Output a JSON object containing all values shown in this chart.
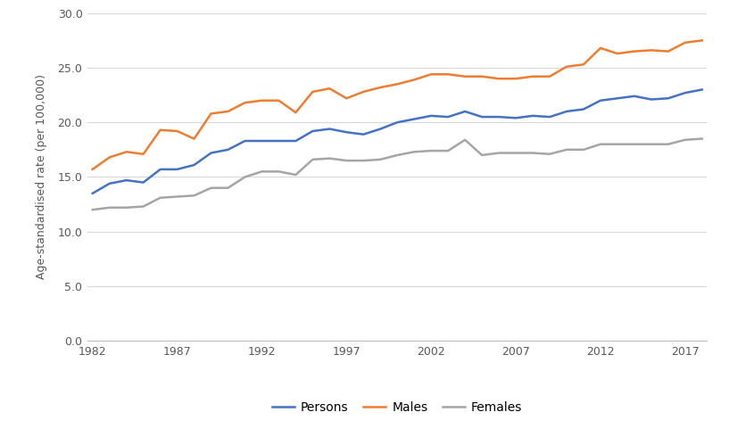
{
  "years": [
    1982,
    1983,
    1984,
    1985,
    1986,
    1987,
    1988,
    1989,
    1990,
    1991,
    1992,
    1993,
    1994,
    1995,
    1996,
    1997,
    1998,
    1999,
    2000,
    2001,
    2002,
    2003,
    2004,
    2005,
    2006,
    2007,
    2008,
    2009,
    2010,
    2011,
    2012,
    2013,
    2014,
    2015,
    2016,
    2017,
    2018
  ],
  "persons": [
    13.5,
    14.4,
    14.7,
    14.5,
    15.7,
    15.7,
    16.1,
    17.2,
    17.5,
    18.3,
    18.3,
    18.3,
    18.3,
    19.2,
    19.4,
    19.1,
    18.9,
    19.4,
    20.0,
    20.3,
    20.6,
    20.5,
    21.0,
    20.5,
    20.5,
    20.4,
    20.6,
    20.5,
    21.0,
    21.2,
    22.0,
    22.2,
    22.4,
    22.1,
    22.2,
    22.7,
    23.0
  ],
  "males": [
    15.7,
    16.8,
    17.3,
    17.1,
    19.3,
    19.2,
    18.5,
    20.8,
    21.0,
    21.8,
    22.0,
    22.0,
    20.9,
    22.8,
    23.1,
    22.2,
    22.8,
    23.2,
    23.5,
    23.9,
    24.4,
    24.4,
    24.2,
    24.2,
    24.0,
    24.0,
    24.2,
    24.2,
    25.1,
    25.3,
    26.8,
    26.3,
    26.5,
    26.6,
    26.5,
    27.3,
    27.5
  ],
  "females": [
    12.0,
    12.2,
    12.2,
    12.3,
    13.1,
    13.2,
    13.3,
    14.0,
    14.0,
    15.0,
    15.5,
    15.5,
    15.2,
    16.6,
    16.7,
    16.5,
    16.5,
    16.6,
    17.0,
    17.3,
    17.4,
    17.4,
    18.4,
    17.0,
    17.2,
    17.2,
    17.2,
    17.1,
    17.5,
    17.5,
    18.0,
    18.0,
    18.0,
    18.0,
    18.0,
    18.4,
    18.5
  ],
  "persons_color": "#4472C4",
  "males_color": "#ED7D31",
  "females_color": "#A5A5A5",
  "ylabel": "Age-standardised rate (per 100,000)",
  "xlabel": "",
  "yticks": [
    0.0,
    5.0,
    10.0,
    15.0,
    20.0,
    25.0,
    30.0
  ],
  "xticks": [
    1982,
    1987,
    1992,
    1997,
    2002,
    2007,
    2012,
    2017
  ],
  "ylim": [
    0.0,
    30.0
  ],
  "xlim": [
    1982,
    2018
  ],
  "legend_labels": [
    "Persons",
    "Males",
    "Females"
  ],
  "line_width": 1.8,
  "background_color": "#FFFFFF",
  "grid_color": "#D9D9D9"
}
